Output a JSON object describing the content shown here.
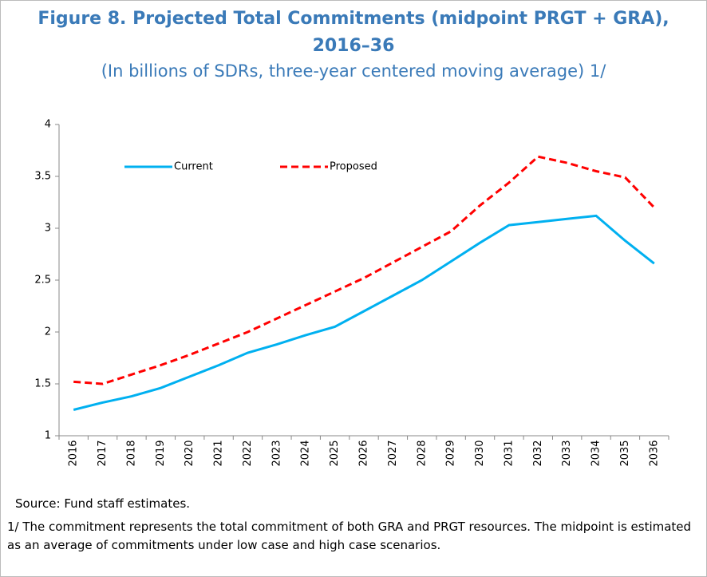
{
  "chart_data": {
    "type": "line",
    "title": "Figure 8. Projected Total Commitments (midpoint PRGT + GRA), 2016–36",
    "subtitle": "(In billions of SDRs, three-year centered moving average) 1/",
    "categories": [
      "2016",
      "2017",
      "2018",
      "2019",
      "2020",
      "2021",
      "2022",
      "2023",
      "2024",
      "2025",
      "2026",
      "2027",
      "2028",
      "2029",
      "2030",
      "2031",
      "2032",
      "2033",
      "2034",
      "2035",
      "2036"
    ],
    "series": [
      {
        "name": "Current",
        "color": "#00b0f0",
        "dashed": false,
        "values": [
          1.25,
          1.32,
          1.38,
          1.46,
          1.57,
          1.68,
          1.8,
          1.88,
          1.97,
          2.05,
          2.2,
          2.35,
          2.5,
          2.68,
          2.86,
          3.03,
          3.06,
          3.09,
          3.12,
          2.88,
          2.66
        ]
      },
      {
        "name": "Proposed",
        "color": "#ff0000",
        "dashed": true,
        "values": [
          1.52,
          1.5,
          1.59,
          1.68,
          1.78,
          1.89,
          2.0,
          2.13,
          2.26,
          2.39,
          2.52,
          2.67,
          2.82,
          2.97,
          3.22,
          3.44,
          3.69,
          3.63,
          3.55,
          3.49,
          3.2
        ]
      }
    ],
    "ylim": [
      1,
      4
    ],
    "yticks": [
      1,
      1.5,
      2,
      2.5,
      3,
      3.5,
      4
    ],
    "grid": false
  },
  "notes": {
    "source": "Source: Fund staff estimates.",
    "footnote": "1/ The commitment represents the total commitment of both GRA and PRGT resources. The midpoint is estimated as an average of commitments under low case and high case scenarios."
  }
}
